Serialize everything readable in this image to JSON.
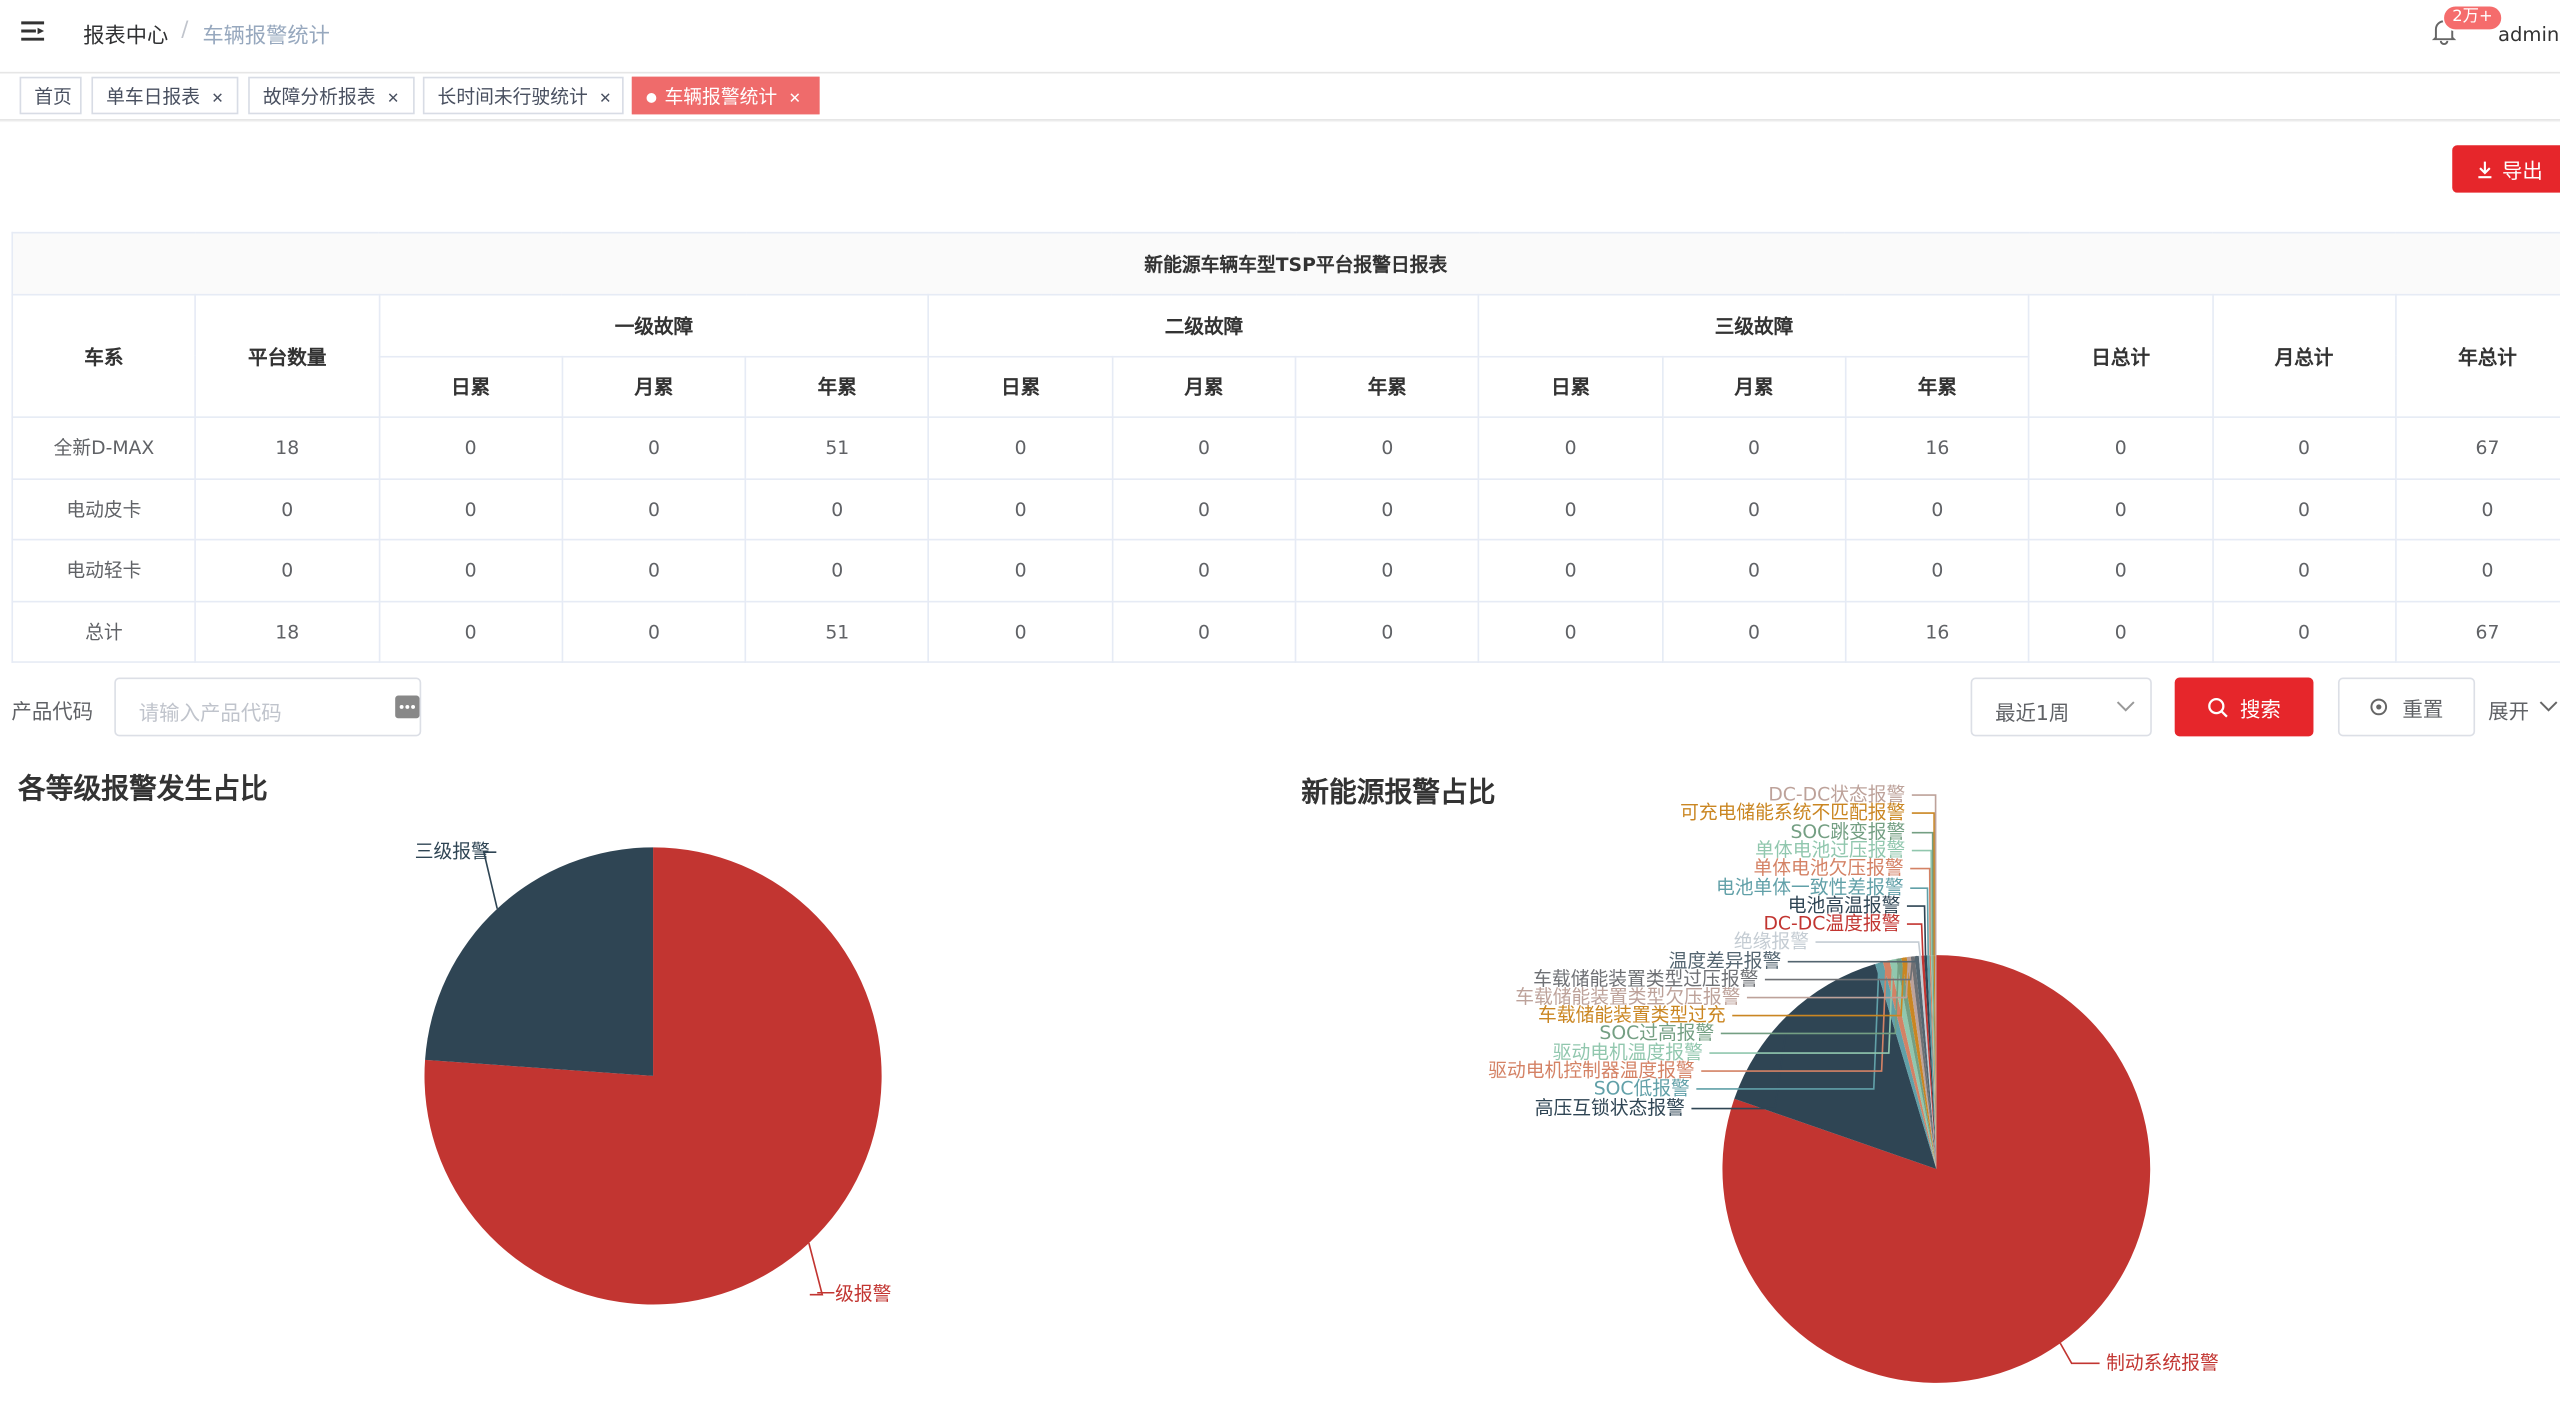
{
  "header": {
    "breadcrumb": [
      "报表中心",
      "车辆报警统计"
    ],
    "badge": "2万+",
    "user": "admin"
  },
  "tabs": [
    "首页",
    "单车日报表",
    "故障分析报表",
    "长时间未行驶统计",
    "车辆报警统计"
  ],
  "active_tab": 4,
  "toolbar": {
    "export": "导出"
  },
  "table": {
    "title": "新能源车辆车型TSP平台报警日报表",
    "headers": {
      "series": "车系",
      "platform": "平台数量",
      "groups": [
        "一级故障",
        "二级故障",
        "三级故障"
      ],
      "sub": [
        "日累",
        "月累",
        "年累",
        "日累",
        "月累",
        "年累",
        "日累",
        "月累",
        "年累"
      ],
      "totals": [
        "日总计",
        "月总计",
        "年总计"
      ]
    },
    "rows": [
      [
        "全新D-MAX",
        18,
        0,
        0,
        51,
        0,
        0,
        0,
        0,
        0,
        16,
        0,
        0,
        67
      ],
      [
        "电动皮卡",
        0,
        0,
        0,
        0,
        0,
        0,
        0,
        0,
        0,
        0,
        0,
        0,
        0
      ],
      [
        "电动轻卡",
        0,
        0,
        0,
        0,
        0,
        0,
        0,
        0,
        0,
        0,
        0,
        0,
        0
      ],
      [
        "总计",
        18,
        0,
        0,
        51,
        0,
        0,
        0,
        0,
        0,
        16,
        0,
        0,
        67
      ]
    ]
  },
  "form": {
    "label": "产品代码",
    "placeholder": "请输入产品代码",
    "period": "最近1周",
    "search": "搜索",
    "reset": "重置",
    "expand": "展开"
  },
  "chart_data": [
    {
      "type": "pie",
      "title": "各等级报警发生占比",
      "categories": [
        "一级报警",
        "三级报警"
      ],
      "values": [
        51,
        16
      ],
      "colors": [
        "#c23531",
        "#2f4554"
      ]
    },
    {
      "type": "pie",
      "title": "新能源报警占比",
      "categories": [
        "制动系统报警",
        "高压互锁状态报警",
        "SOC低报警",
        "驱动电机控制器温度报警",
        "驱动电机温度报警",
        "SOC过高报警",
        "车载储能装置类型过充",
        "车载储能装置类型欠压报警",
        "车载储能装置类型过压报警",
        "温度差异报警",
        "绝缘报警",
        "DC-DC温度报警",
        "电池高温报警",
        "电池单体一致性差报警",
        "单体电池欠压报警",
        "单体电池过压报警",
        "SOC跳变报警",
        "可充电储能系统不匹配报警",
        "DC-DC状态报警"
      ],
      "values": [
        800,
        150,
        6,
        5,
        5,
        4,
        4,
        3,
        3,
        3,
        2,
        2,
        2,
        2,
        1,
        1,
        1,
        1,
        1
      ],
      "colors": [
        "#c23531",
        "#2f4554",
        "#61a0a8",
        "#d48265",
        "#91c7ae",
        "#749f83",
        "#ca8622",
        "#bda29a",
        "#6e7074",
        "#546570",
        "#c4ccd3",
        "#c23531",
        "#2f4554",
        "#61a0a8",
        "#d48265",
        "#91c7ae",
        "#749f83",
        "#ca8622",
        "#bda29a"
      ]
    }
  ]
}
